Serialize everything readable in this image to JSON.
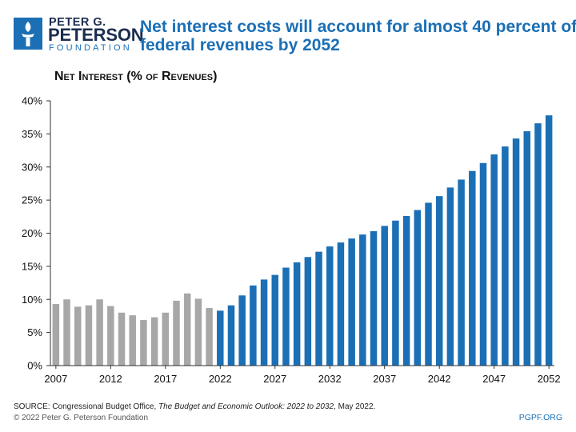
{
  "logo": {
    "line1": "PETER G.",
    "line2": "PETERSON",
    "line3": "FOUNDATION",
    "icon": "torch-icon",
    "color": "#1b2d4f"
  },
  "title": {
    "line1": "Net interest costs will account for almost 40 percent of",
    "line2": "federal revenues by 2052"
  },
  "subtitle": "Net Interest (% of Revenues)",
  "source": {
    "prefix": "SOURCE: Congressional Budget Office, ",
    "italic": "The Budget and Economic Outlook: 2022 to 2032",
    "suffix": ", May 2022."
  },
  "copyright": "© 2022 Peter G. Peterson Foundation",
  "site": "PGPF.ORG",
  "colors": {
    "historical": "#a7a7a7",
    "projected": "#1b6fb5",
    "accent": "#1b6fb5"
  },
  "chart_data": {
    "type": "bar",
    "title": "",
    "ylabel": "Net Interest (% of Revenues)",
    "xlabel": "",
    "ylim": [
      0,
      40
    ],
    "yticks": [
      "0%",
      "5%",
      "10%",
      "15%",
      "20%",
      "25%",
      "30%",
      "35%",
      "40%"
    ],
    "xticks": [
      "2007",
      "2012",
      "2017",
      "2022",
      "2027",
      "2032",
      "2037",
      "2042",
      "2047",
      "2052"
    ],
    "grid": false,
    "legend": "none",
    "projection_start": 2022,
    "series": [
      {
        "x": [
          2007,
          2008,
          2009,
          2010,
          2011,
          2012,
          2013,
          2014,
          2015,
          2016,
          2017,
          2018,
          2019,
          2020,
          2021
        ],
        "values": [
          9.3,
          10.0,
          8.9,
          9.1,
          10.0,
          9.0,
          8.0,
          7.6,
          6.9,
          7.3,
          8.0,
          9.8,
          10.9,
          10.1,
          8.7
        ]
      },
      {
        "x": [
          2022,
          2023,
          2024,
          2025,
          2026,
          2027,
          2028,
          2029,
          2030,
          2031,
          2032,
          2033,
          2034,
          2035,
          2036,
          2037,
          2038,
          2039,
          2040,
          2041,
          2042,
          2043,
          2044,
          2045,
          2046,
          2047,
          2048,
          2049,
          2050,
          2051,
          2052
        ],
        "values": [
          8.3,
          9.1,
          10.6,
          12.1,
          13.0,
          13.7,
          14.8,
          15.6,
          16.4,
          17.2,
          18.0,
          18.6,
          19.2,
          19.8,
          20.3,
          21.1,
          21.9,
          22.6,
          23.5,
          24.6,
          25.6,
          26.9,
          28.1,
          29.4,
          30.6,
          31.9,
          33.1,
          34.3,
          35.4,
          36.6,
          37.8
        ]
      }
    ]
  }
}
